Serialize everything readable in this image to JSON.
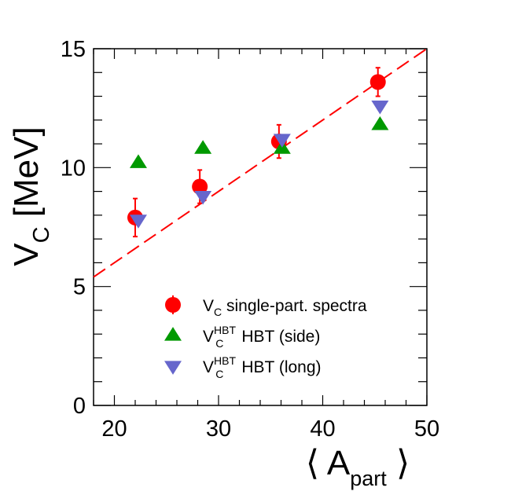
{
  "chart_data": {
    "type": "scatter",
    "title": "",
    "xlabel": {
      "pre": "⟨ A",
      "sub": "part",
      "post": " ⟩"
    },
    "ylabel": {
      "main": "V",
      "sub": "C",
      "post": " [MeV]"
    },
    "xlim": [
      18,
      50
    ],
    "ylim": [
      0,
      15
    ],
    "x_ticks": [
      20,
      30,
      40,
      50
    ],
    "y_ticks": [
      0,
      5,
      10,
      15
    ],
    "grid": false,
    "legend_position": "bottom-center",
    "series": [
      {
        "name": "V_C single-part. spectra",
        "legend": {
          "main": "V",
          "sub": "C",
          "sup": "",
          "rest": " single-part. spectra"
        },
        "marker": "circle",
        "color": "#ff0000",
        "x": [
          22.0,
          28.2,
          35.8,
          45.3
        ],
        "y": [
          7.9,
          9.2,
          11.1,
          13.6
        ],
        "yerr": [
          0.8,
          0.7,
          0.7,
          0.6
        ]
      },
      {
        "name": "V_C^HBT HBT (side)",
        "legend": {
          "main": "V",
          "sub": "C",
          "sup": "HBT",
          "rest": " HBT (side)"
        },
        "marker": "triangle-up",
        "color": "#009900",
        "x": [
          22.3,
          28.5,
          36.1,
          45.5
        ],
        "y": [
          10.2,
          10.8,
          10.8,
          11.8
        ],
        "yerr": [
          0,
          0,
          0,
          0
        ]
      },
      {
        "name": "V_C^HBT HBT (long)",
        "legend": {
          "main": "V",
          "sub": "C",
          "sup": "HBT",
          "rest": " HBT (long)"
        },
        "marker": "triangle-down",
        "color": "#6666cc",
        "x": [
          22.3,
          28.5,
          36.1,
          45.5
        ],
        "y": [
          7.8,
          8.8,
          11.2,
          12.6
        ],
        "yerr": [
          0,
          0,
          0,
          0
        ]
      }
    ],
    "fit_line": {
      "style": "dashed",
      "color": "#ff0000",
      "x": [
        18,
        50
      ],
      "y": [
        5.4,
        15.0
      ]
    }
  }
}
